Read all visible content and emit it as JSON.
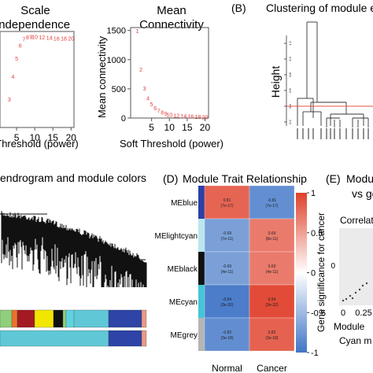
{
  "panels": {
    "A": {
      "scale_title_1": "Scale",
      "scale_title_2": "independence",
      "scale_xlabel": "Threshold (power)",
      "conn_title_1": "Mean",
      "conn_title_2": "Connectivity",
      "conn_ylabel": "Mean connectivity",
      "conn_xlabel": "Soft Threshold (power)"
    },
    "B": {
      "label": "(B)",
      "title": "Clustering of module e",
      "ylabel": "Height"
    },
    "C": {
      "title": "endrogram and module colors"
    },
    "D": {
      "label": "(D)",
      "title": "Module Trait Relationship",
      "colorbar_label": "Gene significance for cancer"
    },
    "E": {
      "label": "(E)",
      "title_1": "Modu",
      "title_2": "vs ge",
      "subtitle": "Correlat",
      "xlabel_1": "Module",
      "xlabel_2": "Cyan m"
    }
  },
  "chart_data": [
    {
      "type": "scatter",
      "panel": "scale-independence",
      "x_ticks": [
        "5",
        "10",
        "15",
        "20"
      ],
      "xlim": [
        0,
        21
      ],
      "points": [
        {
          "x": 3,
          "y": 0.25,
          "label": "3"
        },
        {
          "x": 4,
          "y": 0.5,
          "label": "4"
        },
        {
          "x": 5,
          "y": 0.7,
          "label": "5"
        },
        {
          "x": 6,
          "y": 0.84,
          "label": "6"
        },
        {
          "x": 7,
          "y": 0.91,
          "label": "7"
        },
        {
          "x": 8,
          "y": 0.93,
          "label": "8"
        },
        {
          "x": 9,
          "y": 0.935,
          "label": "9"
        },
        {
          "x": 10,
          "y": 0.935,
          "label": "10"
        },
        {
          "x": 12,
          "y": 0.93,
          "label": "12"
        },
        {
          "x": 14,
          "y": 0.925,
          "label": "14"
        },
        {
          "x": 16,
          "y": 0.92,
          "label": "16"
        },
        {
          "x": 18,
          "y": 0.92,
          "label": "18"
        },
        {
          "x": 20,
          "y": 0.92,
          "label": "20"
        }
      ],
      "point_color": "#e23b3b"
    },
    {
      "type": "scatter",
      "panel": "mean-connectivity",
      "title": "Mean Connectivity",
      "xlabel": "Soft Threshold (power)",
      "ylabel": "Mean connectivity",
      "x_ticks": [
        "5",
        "10",
        "15",
        "20"
      ],
      "y_ticks": [
        "0",
        "500",
        "1000",
        "1500"
      ],
      "xlim": [
        0,
        21
      ],
      "ylim": [
        0,
        1550
      ],
      "points": [
        {
          "x": 1,
          "y": 1480,
          "label": "1"
        },
        {
          "x": 2,
          "y": 820,
          "label": "2"
        },
        {
          "x": 3,
          "y": 500,
          "label": "3"
        },
        {
          "x": 4,
          "y": 330,
          "label": "4"
        },
        {
          "x": 5,
          "y": 230,
          "label": "5"
        },
        {
          "x": 6,
          "y": 160,
          "label": "6"
        },
        {
          "x": 7,
          "y": 115,
          "label": "7"
        },
        {
          "x": 8,
          "y": 85,
          "label": "8"
        },
        {
          "x": 9,
          "y": 65,
          "label": "9"
        },
        {
          "x": 10,
          "y": 50,
          "label": "10"
        },
        {
          "x": 12,
          "y": 35,
          "label": "12"
        },
        {
          "x": 14,
          "y": 25,
          "label": "14"
        },
        {
          "x": 16,
          "y": 18,
          "label": "16"
        },
        {
          "x": 18,
          "y": 14,
          "label": "18"
        },
        {
          "x": 20,
          "y": 10,
          "label": "20"
        }
      ],
      "point_color": "#e23b3b"
    },
    {
      "type": "dendrogram",
      "panel": "module-eigengene-clustering",
      "title": "Clustering of module e",
      "ylabel": "Height",
      "y_ticks": [
        "0.2",
        "0.4",
        "0.6",
        "0.8",
        "1.0",
        "1.2"
      ],
      "cut_height": 0.4,
      "cut_color": "#e8533a"
    },
    {
      "type": "heatmap",
      "panel": "module-trait-relationship",
      "title": "Module Trait Relationship",
      "rows": [
        "MEblue",
        "MElightcyan",
        "MEblack",
        "MEcyan",
        "MEgrey"
      ],
      "row_colors": [
        "#2b3fa6",
        "#b9e6ef",
        "#111111",
        "#45c5d8",
        "#b5b5b5"
      ],
      "columns": [
        "Normal",
        "Cancer"
      ],
      "values": [
        [
          0.81,
          -0.81
        ],
        [
          -0.69,
          0.69
        ],
        [
          -0.69,
          0.69
        ],
        [
          -0.94,
          0.94
        ],
        [
          -0.82,
          0.82
        ]
      ],
      "cell_labels": [
        [
          [
            "0.81",
            "(7e-17)"
          ],
          [
            "-0.81",
            "(7e-17)"
          ]
        ],
        [
          [
            "-0.69",
            "(7e-11)"
          ],
          [
            "0.69",
            "(8e-11)"
          ]
        ],
        [
          [
            "-0.69",
            "(4e-11)"
          ],
          [
            "0.69",
            "(4e-11)"
          ]
        ],
        [
          [
            "-0.94",
            "(3e-32)"
          ],
          [
            "0.94",
            "(3e-32)"
          ]
        ],
        [
          [
            "-0.82",
            "(3e-18)"
          ],
          [
            "0.82",
            "(3e-18)"
          ]
        ]
      ],
      "colorbar_ticks": [
        "1",
        "0.5",
        "0",
        "-0.5",
        "-1"
      ],
      "vmin": -1,
      "vmax": 1
    },
    {
      "type": "scatter",
      "panel": "module-membership-vs-gene-significance",
      "x_ticks": [
        "0",
        "0.25"
      ],
      "y_ticks": [
        "0"
      ]
    }
  ]
}
